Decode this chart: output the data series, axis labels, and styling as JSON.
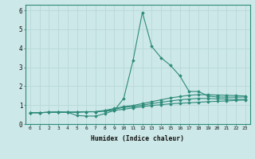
{
  "x": [
    0,
    1,
    2,
    3,
    4,
    5,
    6,
    7,
    8,
    9,
    10,
    11,
    12,
    13,
    14,
    15,
    16,
    17,
    18,
    19,
    20,
    21,
    22,
    23
  ],
  "line1": [
    0.6,
    0.6,
    0.62,
    0.63,
    0.62,
    0.63,
    0.65,
    0.65,
    0.68,
    0.72,
    0.78,
    0.85,
    0.92,
    0.98,
    1.02,
    1.07,
    1.1,
    1.12,
    1.15,
    1.18,
    1.2,
    1.22,
    1.25,
    1.27
  ],
  "line2": [
    0.6,
    0.6,
    0.62,
    0.63,
    0.62,
    0.45,
    0.42,
    0.42,
    0.55,
    0.72,
    1.35,
    3.35,
    5.9,
    4.1,
    3.5,
    3.1,
    2.55,
    1.72,
    1.72,
    1.48,
    1.43,
    1.42,
    1.42,
    1.43
  ],
  "line3": [
    0.6,
    0.6,
    0.62,
    0.63,
    0.62,
    0.63,
    0.65,
    0.65,
    0.72,
    0.82,
    0.92,
    0.98,
    1.08,
    1.18,
    1.28,
    1.38,
    1.45,
    1.52,
    1.55,
    1.55,
    1.53,
    1.52,
    1.5,
    1.48
  ],
  "line4": [
    0.6,
    0.6,
    0.62,
    0.63,
    0.62,
    0.63,
    0.65,
    0.65,
    0.7,
    0.78,
    0.88,
    0.92,
    1.0,
    1.08,
    1.15,
    1.22,
    1.28,
    1.32,
    1.35,
    1.35,
    1.33,
    1.32,
    1.3,
    1.3
  ],
  "color": "#2e8b7a",
  "bg_color": "#cde8e8",
  "grid_color": "#b8d8d8",
  "xlabel": "Humidex (Indice chaleur)",
  "ylim": [
    0,
    6.3
  ],
  "xlim": [
    -0.5,
    23.5
  ],
  "yticks": [
    0,
    1,
    2,
    3,
    4,
    5,
    6
  ],
  "xticks": [
    0,
    1,
    2,
    3,
    4,
    5,
    6,
    7,
    8,
    9,
    10,
    11,
    12,
    13,
    14,
    15,
    16,
    17,
    18,
    19,
    20,
    21,
    22,
    23
  ]
}
